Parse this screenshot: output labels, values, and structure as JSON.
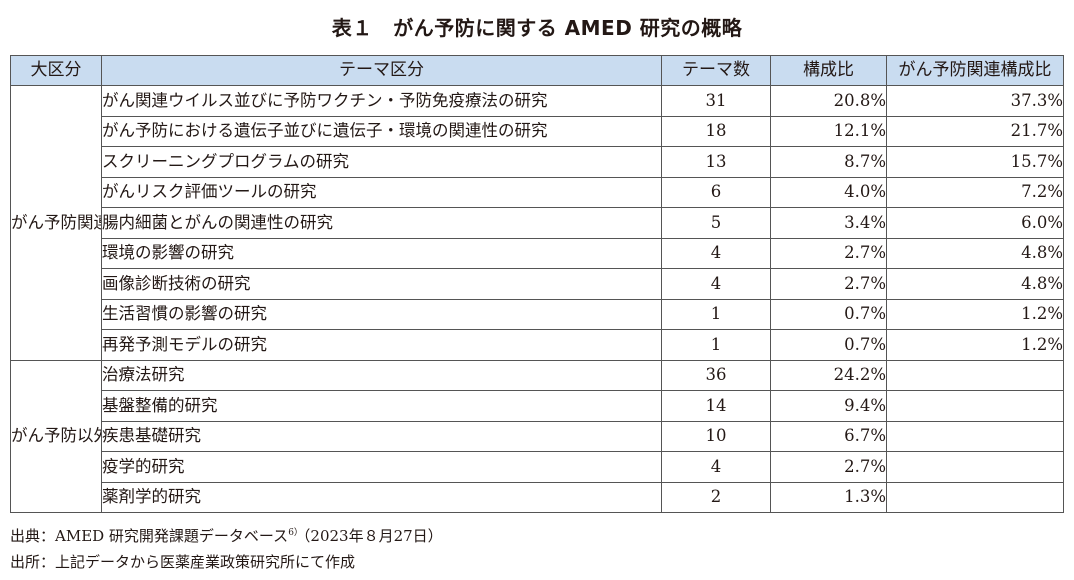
{
  "title": "表１　がん予防に関する AMED 研究の概略",
  "table": {
    "headers": [
      "大区分",
      "テーマ区分",
      "テーマ数",
      "構成比",
      "がん予防関連構成比"
    ],
    "groups": [
      {
        "category": "がん予防関連",
        "rows": [
          {
            "theme": "がん関連ウイルス並びに予防ワクチン・予防免疫療法の研究",
            "count": "31",
            "ratio": "20.8%",
            "cancer_ratio": "37.3%"
          },
          {
            "theme": "がん予防における遺伝子並びに遺伝子・環境の関連性の研究",
            "count": "18",
            "ratio": "12.1%",
            "cancer_ratio": "21.7%"
          },
          {
            "theme": "スクリーニングプログラムの研究",
            "count": "13",
            "ratio": "8.7%",
            "cancer_ratio": "15.7%"
          },
          {
            "theme": "がんリスク評価ツールの研究",
            "count": "6",
            "ratio": "4.0%",
            "cancer_ratio": "7.2%"
          },
          {
            "theme": "腸内細菌とがんの関連性の研究",
            "count": "5",
            "ratio": "3.4%",
            "cancer_ratio": "6.0%"
          },
          {
            "theme": "環境の影響の研究",
            "count": "4",
            "ratio": "2.7%",
            "cancer_ratio": "4.8%"
          },
          {
            "theme": "画像診断技術の研究",
            "count": "4",
            "ratio": "2.7%",
            "cancer_ratio": "4.8%"
          },
          {
            "theme": "生活習慣の影響の研究",
            "count": "1",
            "ratio": "0.7%",
            "cancer_ratio": "1.2%"
          },
          {
            "theme": "再発予測モデルの研究",
            "count": "1",
            "ratio": "0.7%",
            "cancer_ratio": "1.2%"
          }
        ]
      },
      {
        "category": "がん予防以外",
        "rows": [
          {
            "theme": "治療法研究",
            "count": "36",
            "ratio": "24.2%",
            "cancer_ratio": ""
          },
          {
            "theme": "基盤整備的研究",
            "count": "14",
            "ratio": "9.4%",
            "cancer_ratio": ""
          },
          {
            "theme": "疾患基礎研究",
            "count": "10",
            "ratio": "6.7%",
            "cancer_ratio": ""
          },
          {
            "theme": "疫学的研究",
            "count": "4",
            "ratio": "2.7%",
            "cancer_ratio": ""
          },
          {
            "theme": "薬剤学的研究",
            "count": "2",
            "ratio": "1.3%",
            "cancer_ratio": ""
          }
        ]
      }
    ]
  },
  "footnotes": {
    "source_pre": "出典：AMED 研究開発課題データベース",
    "source_sup": "6）",
    "source_post": "（2023年８月27日）",
    "origin": "出所：上記データから医薬産業政策研究所にて作成"
  }
}
